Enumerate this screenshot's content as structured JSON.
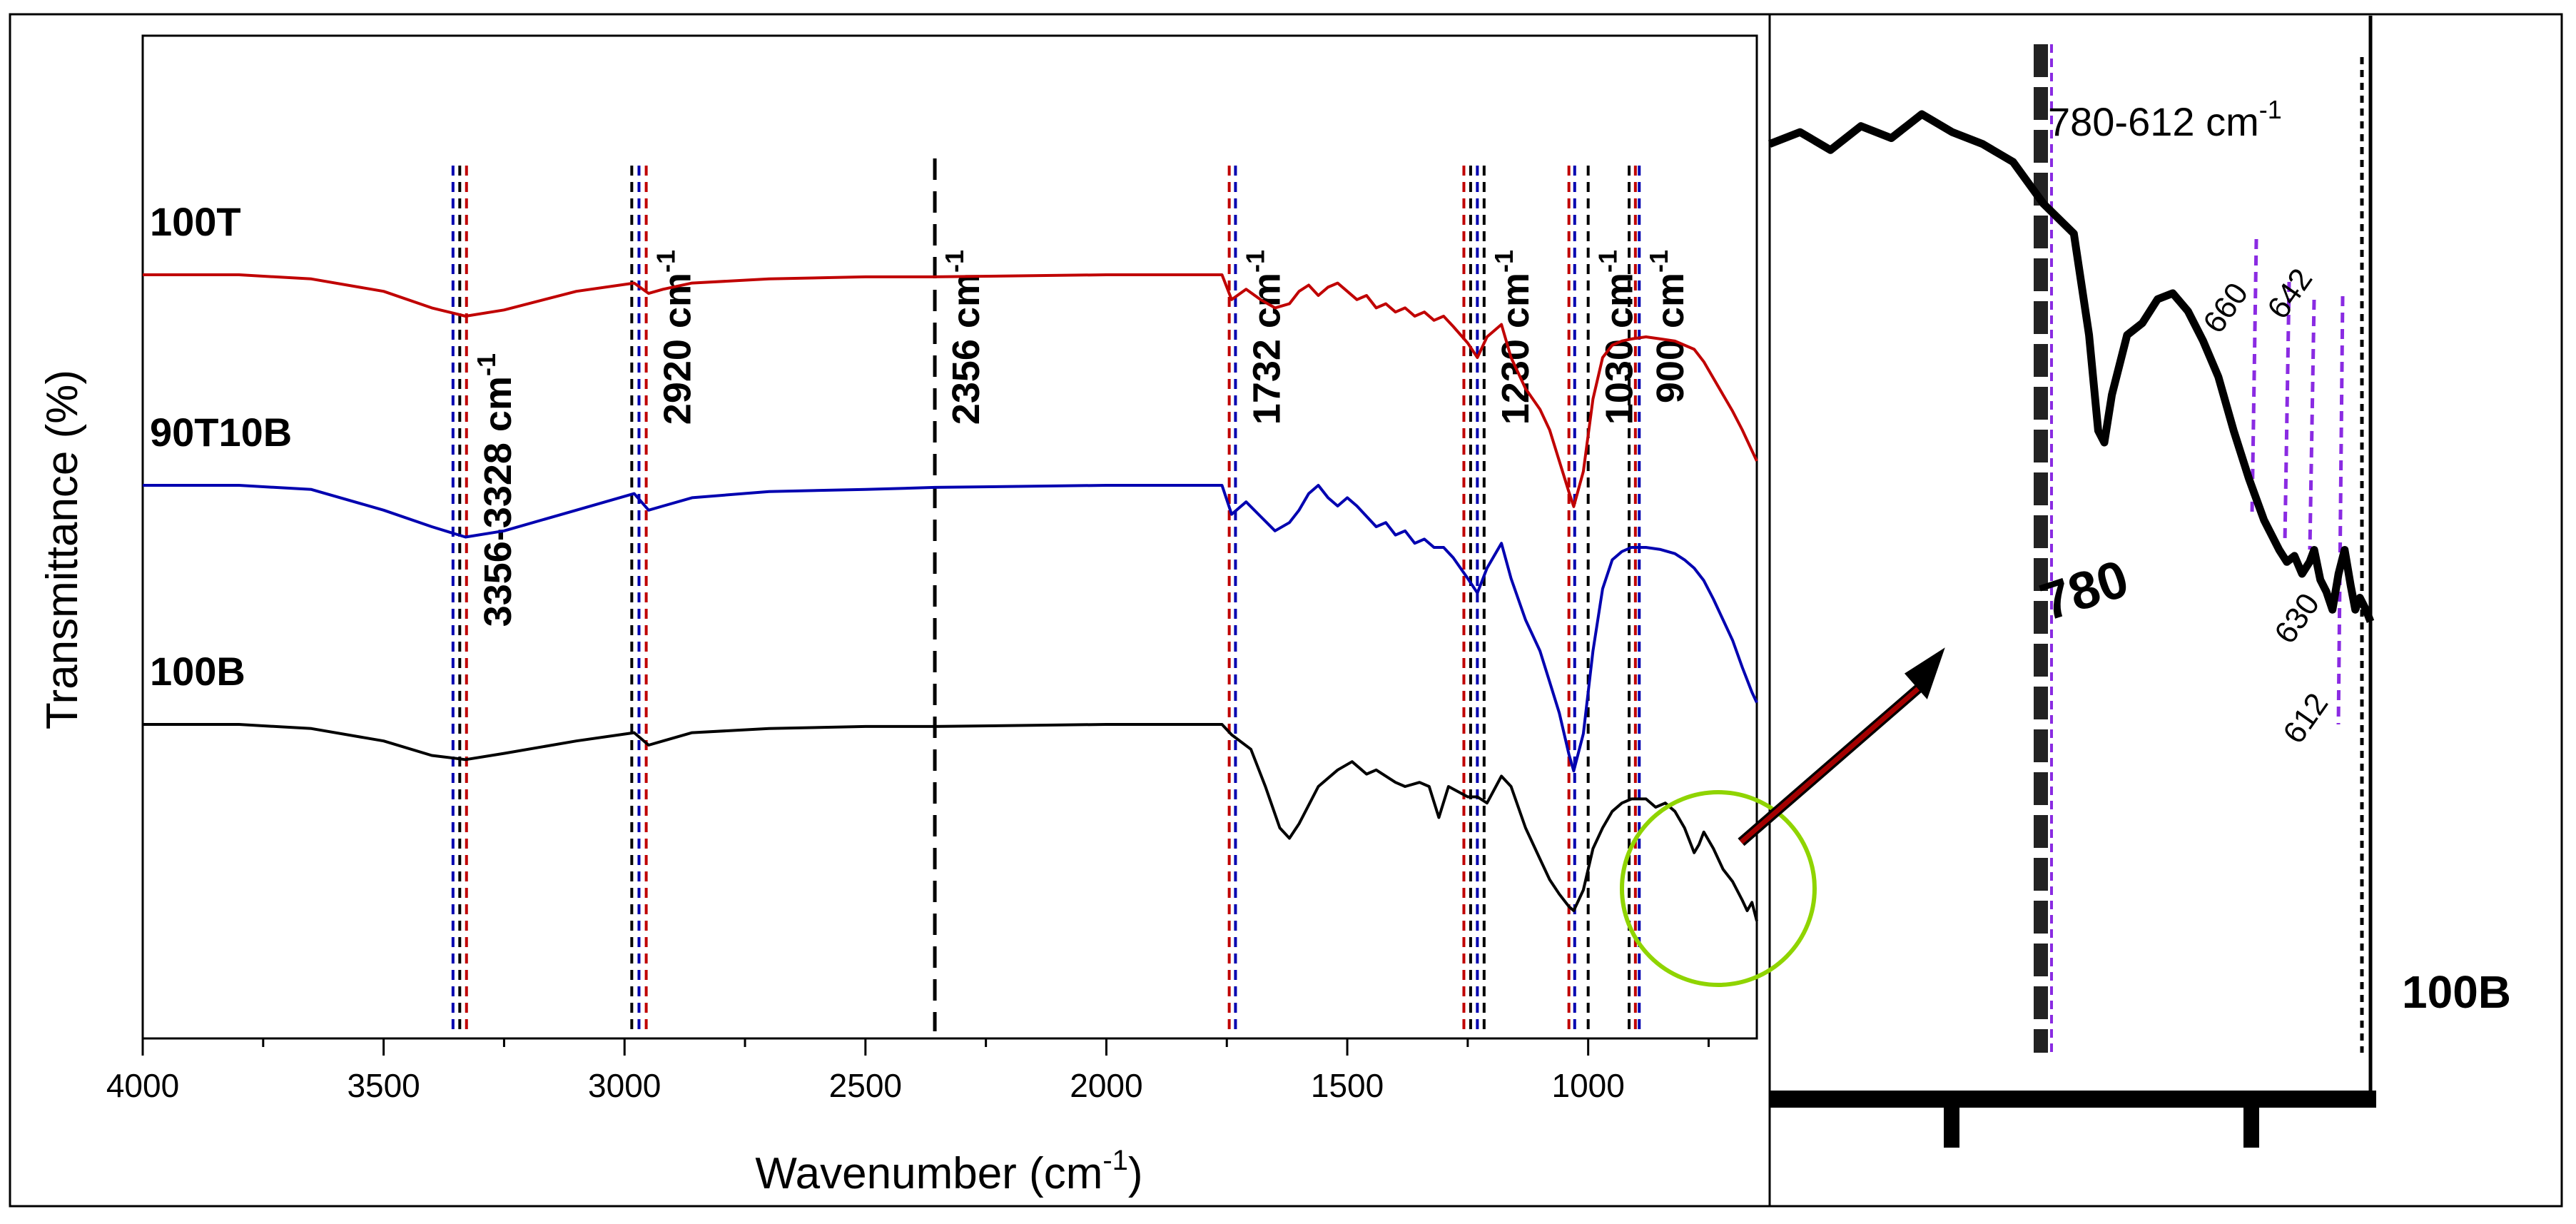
{
  "chart_data": [
    {
      "type": "line",
      "title": "",
      "xlabel": "Wavenumber (cm",
      "xlabel_sup": "-1",
      "xlabel_close": ")",
      "ylabel": "Transmittance (%)",
      "xlim": [
        4000,
        650
      ],
      "x_ticks": [
        4000,
        3500,
        3000,
        2500,
        2000,
        1500,
        1000
      ],
      "x_reversed": true,
      "grid": false,
      "legend": "none (series labelled inline)",
      "series": [
        {
          "name": "100T",
          "color": "#c00000",
          "points": [
            [
              4000,
              0.0
            ],
            [
              3800,
              0.0
            ],
            [
              3650,
              0.02
            ],
            [
              3500,
              0.08
            ],
            [
              3400,
              0.16
            ],
            [
              3330,
              0.2
            ],
            [
              3250,
              0.17
            ],
            [
              3100,
              0.08
            ],
            [
              2980,
              0.04
            ],
            [
              2950,
              0.09
            ],
            [
              2920,
              0.07
            ],
            [
              2860,
              0.04
            ],
            [
              2700,
              0.02
            ],
            [
              2500,
              0.01
            ],
            [
              2356,
              0.01
            ],
            [
              2000,
              0.0
            ],
            [
              1760,
              0.0
            ],
            [
              1740,
              0.12
            ],
            [
              1710,
              0.07
            ],
            [
              1680,
              0.12
            ],
            [
              1650,
              0.16
            ],
            [
              1620,
              0.14
            ],
            [
              1600,
              0.08
            ],
            [
              1580,
              0.05
            ],
            [
              1560,
              0.1
            ],
            [
              1540,
              0.06
            ],
            [
              1520,
              0.04
            ],
            [
              1500,
              0.08
            ],
            [
              1480,
              0.12
            ],
            [
              1460,
              0.1
            ],
            [
              1440,
              0.16
            ],
            [
              1420,
              0.14
            ],
            [
              1400,
              0.18
            ],
            [
              1380,
              0.16
            ],
            [
              1360,
              0.2
            ],
            [
              1340,
              0.18
            ],
            [
              1320,
              0.22
            ],
            [
              1300,
              0.2
            ],
            [
              1280,
              0.25
            ],
            [
              1250,
              0.33
            ],
            [
              1230,
              0.4
            ],
            [
              1210,
              0.3
            ],
            [
              1180,
              0.24
            ],
            [
              1160,
              0.4
            ],
            [
              1130,
              0.55
            ],
            [
              1100,
              0.65
            ],
            [
              1080,
              0.75
            ],
            [
              1060,
              0.9
            ],
            [
              1040,
              1.05
            ],
            [
              1030,
              1.12
            ],
            [
              1010,
              0.95
            ],
            [
              990,
              0.6
            ],
            [
              970,
              0.4
            ],
            [
              950,
              0.34
            ],
            [
              930,
              0.32
            ],
            [
              910,
              0.31
            ],
            [
              880,
              0.3
            ],
            [
              850,
              0.31
            ],
            [
              820,
              0.32
            ],
            [
              800,
              0.34
            ],
            [
              780,
              0.36
            ],
            [
              760,
              0.42
            ],
            [
              740,
              0.5
            ],
            [
              720,
              0.58
            ],
            [
              700,
              0.66
            ],
            [
              680,
              0.75
            ],
            [
              660,
              0.85
            ],
            [
              650,
              0.9
            ]
          ]
        },
        {
          "name": "90T10B",
          "color": "#0000b0",
          "points": [
            [
              4000,
              0.0
            ],
            [
              3800,
              0.0
            ],
            [
              3650,
              0.02
            ],
            [
              3500,
              0.12
            ],
            [
              3400,
              0.2
            ],
            [
              3330,
              0.25
            ],
            [
              3250,
              0.22
            ],
            [
              3100,
              0.12
            ],
            [
              2980,
              0.04
            ],
            [
              2950,
              0.12
            ],
            [
              2920,
              0.1
            ],
            [
              2860,
              0.06
            ],
            [
              2700,
              0.03
            ],
            [
              2500,
              0.02
            ],
            [
              2356,
              0.01
            ],
            [
              2000,
              0.0
            ],
            [
              1760,
              0.0
            ],
            [
              1740,
              0.14
            ],
            [
              1710,
              0.08
            ],
            [
              1680,
              0.15
            ],
            [
              1650,
              0.22
            ],
            [
              1620,
              0.18
            ],
            [
              1600,
              0.12
            ],
            [
              1580,
              0.04
            ],
            [
              1560,
              0.0
            ],
            [
              1540,
              0.06
            ],
            [
              1520,
              0.1
            ],
            [
              1500,
              0.06
            ],
            [
              1480,
              0.1
            ],
            [
              1460,
              0.15
            ],
            [
              1440,
              0.2
            ],
            [
              1420,
              0.18
            ],
            [
              1400,
              0.24
            ],
            [
              1380,
              0.22
            ],
            [
              1360,
              0.28
            ],
            [
              1340,
              0.26
            ],
            [
              1320,
              0.3
            ],
            [
              1300,
              0.3
            ],
            [
              1280,
              0.35
            ],
            [
              1250,
              0.45
            ],
            [
              1230,
              0.52
            ],
            [
              1210,
              0.4
            ],
            [
              1180,
              0.28
            ],
            [
              1160,
              0.45
            ],
            [
              1130,
              0.65
            ],
            [
              1100,
              0.8
            ],
            [
              1080,
              0.95
            ],
            [
              1060,
              1.1
            ],
            [
              1040,
              1.3
            ],
            [
              1030,
              1.38
            ],
            [
              1010,
              1.2
            ],
            [
              990,
              0.8
            ],
            [
              970,
              0.5
            ],
            [
              950,
              0.36
            ],
            [
              930,
              0.32
            ],
            [
              910,
              0.3
            ],
            [
              880,
              0.3
            ],
            [
              850,
              0.31
            ],
            [
              820,
              0.33
            ],
            [
              800,
              0.36
            ],
            [
              780,
              0.4
            ],
            [
              760,
              0.46
            ],
            [
              740,
              0.55
            ],
            [
              720,
              0.65
            ],
            [
              700,
              0.75
            ],
            [
              680,
              0.88
            ],
            [
              660,
              1.0
            ],
            [
              650,
              1.05
            ]
          ]
        },
        {
          "name": "100B",
          "color": "#000000",
          "points": [
            [
              4000,
              0.0
            ],
            [
              3800,
              0.0
            ],
            [
              3650,
              0.02
            ],
            [
              3500,
              0.08
            ],
            [
              3400,
              0.15
            ],
            [
              3330,
              0.17
            ],
            [
              3250,
              0.14
            ],
            [
              3100,
              0.08
            ],
            [
              2980,
              0.04
            ],
            [
              2950,
              0.1
            ],
            [
              2920,
              0.08
            ],
            [
              2860,
              0.04
            ],
            [
              2700,
              0.02
            ],
            [
              2500,
              0.01
            ],
            [
              2356,
              0.01
            ],
            [
              2000,
              0.0
            ],
            [
              1760,
              0.0
            ],
            [
              1740,
              0.05
            ],
            [
              1700,
              0.12
            ],
            [
              1670,
              0.3
            ],
            [
              1640,
              0.5
            ],
            [
              1620,
              0.55
            ],
            [
              1600,
              0.48
            ],
            [
              1560,
              0.3
            ],
            [
              1520,
              0.22
            ],
            [
              1490,
              0.18
            ],
            [
              1460,
              0.24
            ],
            [
              1440,
              0.22
            ],
            [
              1400,
              0.28
            ],
            [
              1380,
              0.3
            ],
            [
              1350,
              0.28
            ],
            [
              1330,
              0.3
            ],
            [
              1310,
              0.45
            ],
            [
              1290,
              0.3
            ],
            [
              1250,
              0.35
            ],
            [
              1230,
              0.35
            ],
            [
              1210,
              0.38
            ],
            [
              1180,
              0.25
            ],
            [
              1160,
              0.3
            ],
            [
              1130,
              0.5
            ],
            [
              1100,
              0.65
            ],
            [
              1080,
              0.75
            ],
            [
              1060,
              0.82
            ],
            [
              1040,
              0.88
            ],
            [
              1030,
              0.9
            ],
            [
              1010,
              0.8
            ],
            [
              990,
              0.6
            ],
            [
              970,
              0.5
            ],
            [
              950,
              0.42
            ],
            [
              930,
              0.38
            ],
            [
              910,
              0.36
            ],
            [
              880,
              0.36
            ],
            [
              860,
              0.4
            ],
            [
              840,
              0.38
            ],
            [
              820,
              0.42
            ],
            [
              800,
              0.5
            ],
            [
              780,
              0.62
            ],
            [
              770,
              0.58
            ],
            [
              760,
              0.52
            ],
            [
              740,
              0.6
            ],
            [
              720,
              0.7
            ],
            [
              700,
              0.76
            ],
            [
              680,
              0.85
            ],
            [
              670,
              0.9
            ],
            [
              660,
              0.86
            ],
            [
              650,
              0.95
            ]
          ]
        }
      ],
      "series_labels": [
        "100T",
        "90T10B",
        "100B"
      ],
      "reference_lines": [
        {
          "label": "3356-3328 cm",
          "sup": "-1",
          "positions": [
            3356,
            3342,
            3328
          ],
          "colors": [
            "#0000b0",
            "#000000",
            "#c00000"
          ]
        },
        {
          "label": "2920 cm",
          "sup": "-1",
          "positions": [
            2985,
            2970,
            2955
          ],
          "colors": [
            "#000000",
            "#0000b0",
            "#c00000"
          ]
        },
        {
          "label": "2356 cm",
          "sup": "-1",
          "positions": [
            2356
          ],
          "colors": [
            "#000000"
          ]
        },
        {
          "label": "1732 cm",
          "sup": "-1",
          "positions": [
            1745,
            1732
          ],
          "colors": [
            "#c00000",
            "#0000b0"
          ]
        },
        {
          "label": "1230 cm",
          "sup": "-1",
          "positions": [
            1258,
            1244,
            1230,
            1216
          ],
          "colors": [
            "#c00000",
            "#000000",
            "#0000b0",
            "#000000"
          ]
        },
        {
          "label": "1030 cm",
          "sup": "-1",
          "positions": [
            1040,
            1028,
            1000
          ],
          "colors": [
            "#c00000",
            "#0000b0",
            "#000000"
          ]
        },
        {
          "label": "900 cm",
          "sup": "-1",
          "positions": [
            915,
            902,
            894
          ],
          "colors": [
            "#000000",
            "#c00000",
            "#0000b0"
          ]
        }
      ],
      "highlight": {
        "center_x": 730,
        "description": "inset region marker",
        "color": "#8fd400"
      }
    },
    {
      "type": "line",
      "title": "100B",
      "series": [
        {
          "name": "100B (inset)",
          "color": "#000000",
          "points": [
            [
              1000,
              0.3
            ],
            [
              980,
              0.28
            ],
            [
              960,
              0.31
            ],
            [
              940,
              0.27
            ],
            [
              920,
              0.29
            ],
            [
              900,
              0.25
            ],
            [
              880,
              0.28
            ],
            [
              860,
              0.3
            ],
            [
              840,
              0.33
            ],
            [
              820,
              0.4
            ],
            [
              800,
              0.45
            ],
            [
              790,
              0.62
            ],
            [
              784,
              0.78
            ],
            [
              780,
              0.8
            ],
            [
              775,
              0.72
            ],
            [
              765,
              0.62
            ],
            [
              755,
              0.6
            ],
            [
              745,
              0.56
            ],
            [
              735,
              0.55
            ],
            [
              725,
              0.58
            ],
            [
              715,
              0.63
            ],
            [
              705,
              0.69
            ],
            [
              695,
              0.78
            ],
            [
              685,
              0.86
            ],
            [
              675,
              0.93
            ],
            [
              665,
              0.98
            ],
            [
              660,
              1.0
            ],
            [
              655,
              0.99
            ],
            [
              650,
              1.02
            ],
            [
              645,
              1.0
            ],
            [
              642,
              0.98
            ],
            [
              638,
              1.03
            ],
            [
              634,
              1.05
            ],
            [
              630,
              1.08
            ],
            [
              626,
              1.02
            ],
            [
              622,
              0.98
            ],
            [
              618,
              1.04
            ],
            [
              615,
              1.08
            ],
            [
              612,
              1.06
            ],
            [
              608,
              1.08
            ],
            [
              605,
              1.1
            ]
          ]
        }
      ],
      "range_label": "780-612 cm",
      "range_label_sup": "-1",
      "peak_labels": [
        "780",
        "660",
        "642",
        "630",
        "612"
      ]
    }
  ]
}
